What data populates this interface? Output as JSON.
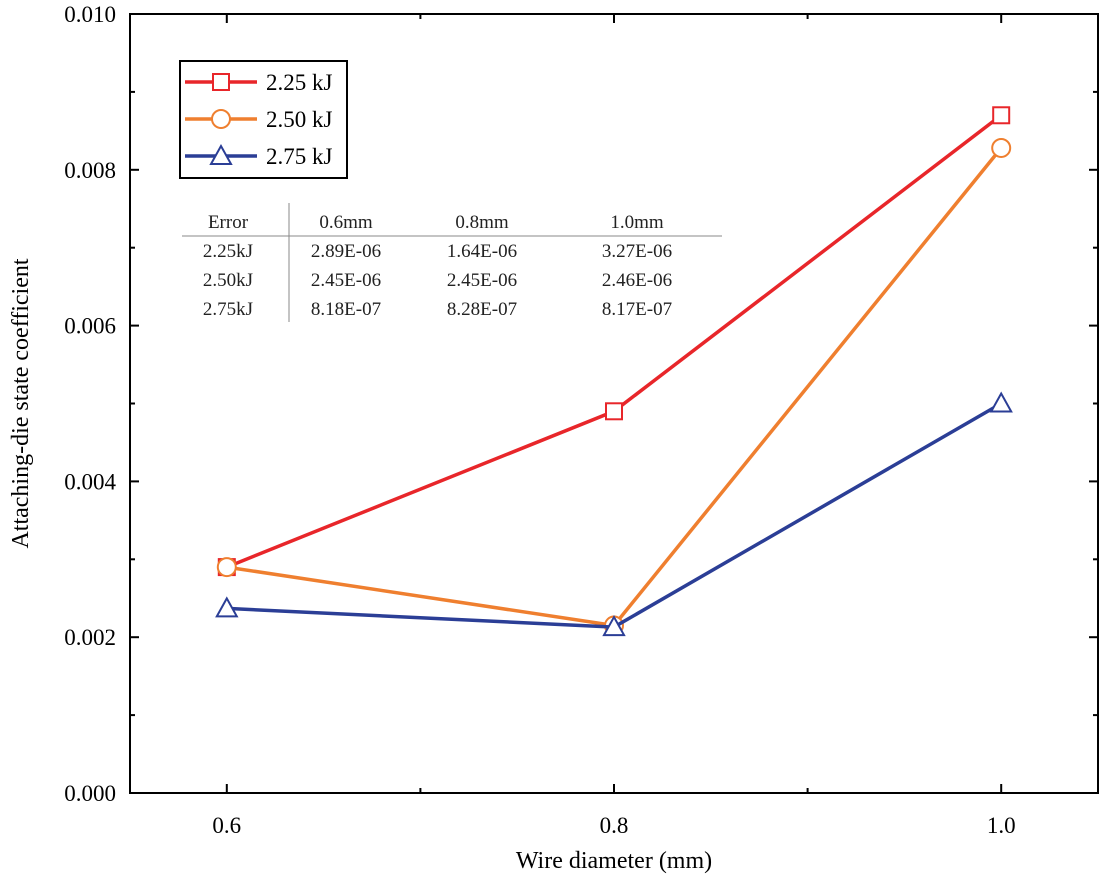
{
  "chart_data": {
    "type": "line",
    "xlabel": "Wire diameter (mm)",
    "ylabel": "Attaching-die state coefficient",
    "xlim": [
      0.55,
      1.05
    ],
    "ylim": [
      0.0,
      0.01
    ],
    "x_ticks": [
      "0.6",
      "0.8",
      "1.0"
    ],
    "x_tick_values": [
      0.6,
      0.8,
      1.0
    ],
    "y_ticks": [
      "0.000",
      "0.002",
      "0.004",
      "0.006",
      "0.008",
      "0.010"
    ],
    "y_tick_values": [
      0.0,
      0.002,
      0.004,
      0.006,
      0.008,
      0.01
    ],
    "x": [
      0.6,
      0.8,
      1.0
    ],
    "legend_position": "top-left",
    "series": [
      {
        "name": "2.25 kJ",
        "color": "#e8262a",
        "marker": "square",
        "values": [
          0.0029,
          0.0049,
          0.0087
        ]
      },
      {
        "name": "2.50 kJ",
        "color": "#ef7f2f",
        "marker": "circle",
        "values": [
          0.0029,
          0.00215,
          0.00828
        ]
      },
      {
        "name": "2.75 kJ",
        "color": "#2b3e96",
        "marker": "triangle",
        "values": [
          0.00237,
          0.00213,
          0.005
        ]
      }
    ],
    "error_table": {
      "header": [
        "Error",
        "0.6mm",
        "0.8mm",
        "1.0mm"
      ],
      "rows": [
        [
          "2.25kJ",
          "2.89E-06",
          "1.64E-06",
          "3.27E-06"
        ],
        [
          "2.50kJ",
          "2.45E-06",
          "2.45E-06",
          "2.46E-06"
        ],
        [
          "2.75kJ",
          "8.18E-07",
          "8.28E-07",
          "8.17E-07"
        ]
      ]
    }
  }
}
